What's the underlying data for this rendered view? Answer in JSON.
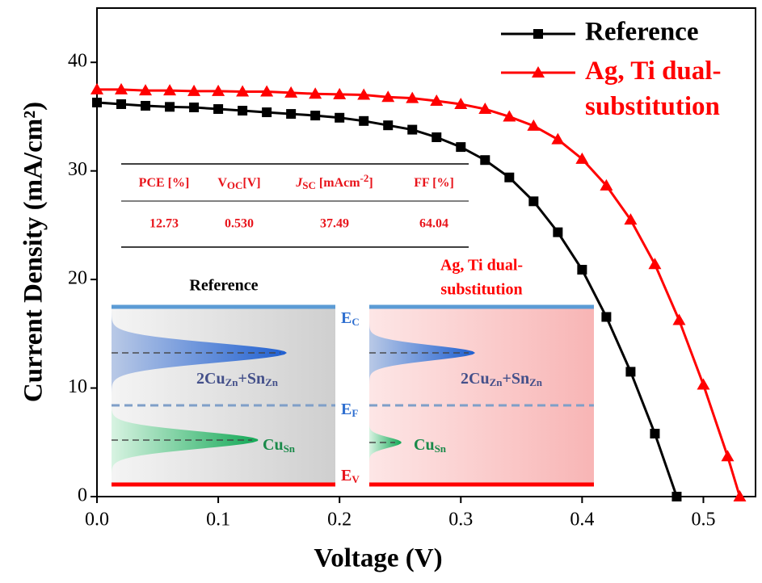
{
  "chart_data": {
    "type": "line",
    "xlabel": "Voltage (V)",
    "ylabel": "Current Density (mA/cm²)",
    "xlim": [
      0,
      0.543
    ],
    "ylim": [
      0,
      45
    ],
    "xticks": [
      {
        "value": 0,
        "label": "0.0"
      },
      0.1,
      0.2,
      0.3,
      0.4,
      0.5
    ],
    "yticks": [
      0,
      10,
      20,
      30,
      40
    ],
    "legend": "top-right",
    "series": [
      {
        "name": "Reference",
        "color": "#000000",
        "marker": "square",
        "x": [
          0,
          0.02,
          0.04,
          0.06,
          0.08,
          0.1,
          0.12,
          0.14,
          0.16,
          0.18,
          0.2,
          0.22,
          0.24,
          0.26,
          0.28,
          0.3,
          0.32,
          0.34,
          0.36,
          0.38,
          0.4,
          0.42,
          0.44,
          0.46,
          0.478
        ],
        "values": [
          36.3,
          36.15,
          36.0,
          35.9,
          35.85,
          35.7,
          35.55,
          35.4,
          35.25,
          35.1,
          34.9,
          34.6,
          34.2,
          33.8,
          33.1,
          32.2,
          31.0,
          29.4,
          27.2,
          24.35,
          20.9,
          16.55,
          11.5,
          5.8,
          0
        ]
      },
      {
        "name": "Ag, Ti dual-substitution",
        "color": "#ff0000",
        "marker": "triangle",
        "x": [
          0,
          0.02,
          0.04,
          0.06,
          0.08,
          0.1,
          0.12,
          0.14,
          0.16,
          0.18,
          0.2,
          0.22,
          0.24,
          0.26,
          0.28,
          0.3,
          0.32,
          0.34,
          0.36,
          0.38,
          0.4,
          0.42,
          0.44,
          0.46,
          0.48,
          0.5,
          0.52,
          0.53
        ],
        "values": [
          37.5,
          37.5,
          37.4,
          37.4,
          37.35,
          37.35,
          37.3,
          37.3,
          37.2,
          37.1,
          37.05,
          37.0,
          36.8,
          36.7,
          36.45,
          36.15,
          35.7,
          35.0,
          34.15,
          32.9,
          31.1,
          28.65,
          25.5,
          21.4,
          16.25,
          10.3,
          3.7,
          0
        ]
      }
    ],
    "table": {
      "headers": [
        [
          "PCE [%]"
        ],
        [
          "V",
          "OC",
          "[V]"
        ],
        [
          "J",
          "SC",
          " [mAcm",
          "-2",
          "]"
        ],
        [
          "FF [%]"
        ]
      ],
      "values": [
        "12.73",
        "0.530",
        "37.49",
        "64.04"
      ]
    },
    "inset": {
      "left_title": "Reference",
      "right_title": [
        "Ag, Ti dual-",
        "substitution"
      ],
      "ec": [
        "E",
        "C"
      ],
      "ef": [
        "E",
        "F"
      ],
      "ev": [
        "E",
        "V"
      ],
      "defect_a": [
        "2Cu",
        "Zn",
        "+Sn",
        "Zn"
      ],
      "defect_b": [
        "Cu",
        "Sn"
      ]
    }
  }
}
